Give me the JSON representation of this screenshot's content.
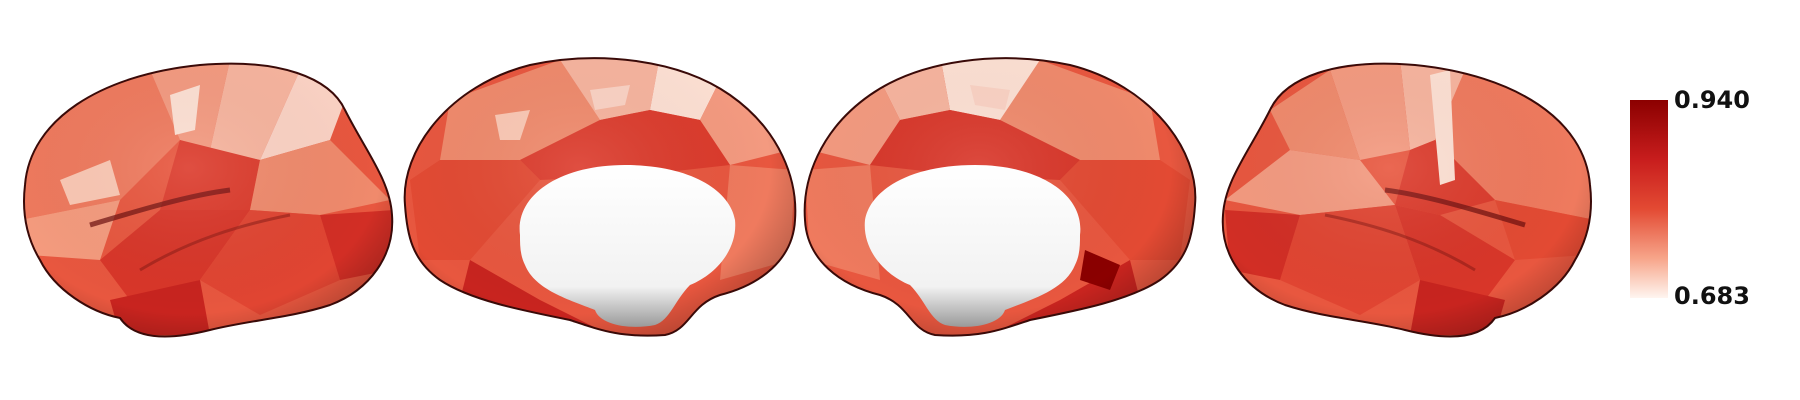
{
  "colorbar": {
    "max_label": "0.940",
    "min_label": "0.683",
    "color_high": "#8b0000",
    "color_mid": "#e34a33",
    "color_low": "#fff5f0"
  },
  "views": [
    {
      "name": "left-lateral"
    },
    {
      "name": "left-medial"
    },
    {
      "name": "right-medial"
    },
    {
      "name": "right-lateral"
    }
  ]
}
